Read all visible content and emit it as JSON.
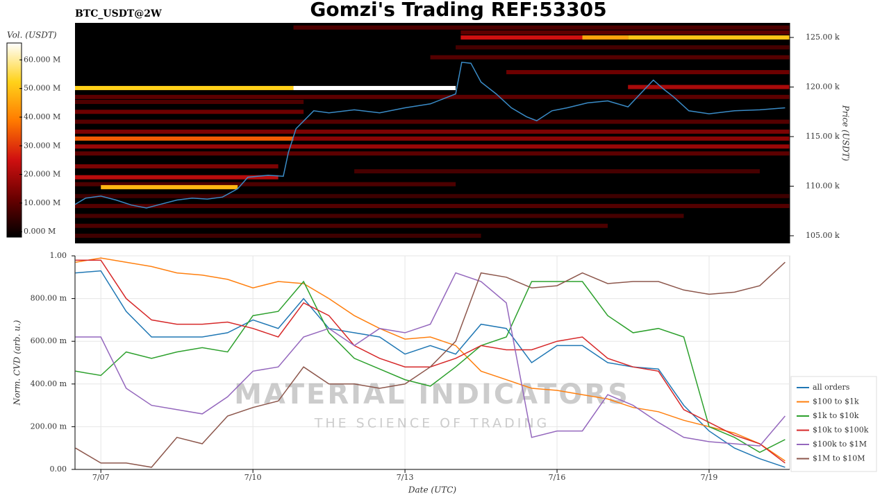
{
  "title": "Gomzi's Trading REF:53305",
  "chart_data": [
    {
      "type": "heatmap",
      "title": "BTC_USDT@2W",
      "ylabel": "Price (USDT)",
      "colorbar_label": "Vol. (USDT)",
      "xlim": [
        6.49,
        20.59
      ],
      "ylim": [
        104230,
        126470
      ],
      "yticks": [
        {
          "value": 105000,
          "label": "105.00 k"
        },
        {
          "value": 110000,
          "label": "110.00 k"
        },
        {
          "value": 115000,
          "label": "115.00 k"
        },
        {
          "value": 120000,
          "label": "120.00 k"
        },
        {
          "value": 125000,
          "label": "125.00 k"
        }
      ],
      "clim": [
        -1900000,
        65900000
      ],
      "cticks": [
        {
          "value": 0,
          "label": "0.000 M"
        },
        {
          "value": 10000000,
          "label": "10.000 M"
        },
        {
          "value": 20000000,
          "label": "20.000 M"
        },
        {
          "value": 30000000,
          "label": "30.000 M"
        },
        {
          "value": 40000000,
          "label": "40.000 M"
        },
        {
          "value": 50000000,
          "label": "50.000 M"
        },
        {
          "value": 60000000,
          "label": "60.000 M"
        }
      ],
      "colormap": [
        "#000000",
        "#6a0000",
        "#d01010",
        "#ff7a00",
        "#ffd21a",
        "#ffffff"
      ],
      "bands": [
        {
          "price": 126000,
          "start": 10.8,
          "end": 20.59,
          "volume": 8000000
        },
        {
          "price": 125500,
          "start": 14.1,
          "end": 20.59,
          "volume": 10000000
        },
        {
          "price": 125000,
          "start": 14.1,
          "end": 16.5,
          "volume": 25000000
        },
        {
          "price": 125000,
          "start": 16.5,
          "end": 17.4,
          "volume": 45000000
        },
        {
          "price": 125000,
          "start": 17.4,
          "end": 20.59,
          "volume": 50000000
        },
        {
          "price": 124000,
          "start": 14.0,
          "end": 20.59,
          "volume": 7000000
        },
        {
          "price": 123000,
          "start": 13.5,
          "end": 20.59,
          "volume": 9000000
        },
        {
          "price": 121500,
          "start": 15.0,
          "end": 20.59,
          "volume": 12000000
        },
        {
          "price": 120000,
          "start": 17.4,
          "end": 20.59,
          "volume": 20000000
        },
        {
          "price": 119900,
          "start": 6.49,
          "end": 10.8,
          "volume": 52000000
        },
        {
          "price": 119900,
          "start": 10.8,
          "end": 14.0,
          "volume": 66000000
        },
        {
          "price": 119000,
          "start": 6.49,
          "end": 20.59,
          "volume": 10000000
        },
        {
          "price": 118500,
          "start": 6.49,
          "end": 11.0,
          "volume": 8000000
        },
        {
          "price": 117500,
          "start": 6.49,
          "end": 11.0,
          "volume": 12000000
        },
        {
          "price": 116500,
          "start": 6.49,
          "end": 20.59,
          "volume": 9000000
        },
        {
          "price": 115500,
          "start": 6.49,
          "end": 20.59,
          "volume": 14000000
        },
        {
          "price": 114800,
          "start": 6.49,
          "end": 10.8,
          "volume": 35000000
        },
        {
          "price": 114800,
          "start": 10.8,
          "end": 20.59,
          "volume": 16000000
        },
        {
          "price": 114000,
          "start": 6.49,
          "end": 20.59,
          "volume": 18000000
        },
        {
          "price": 113300,
          "start": 6.49,
          "end": 20.59,
          "volume": 10000000
        },
        {
          "price": 112000,
          "start": 6.49,
          "end": 10.5,
          "volume": 14000000
        },
        {
          "price": 111500,
          "start": 12.0,
          "end": 20.0,
          "volume": 7000000
        },
        {
          "price": 110900,
          "start": 6.49,
          "end": 10.5,
          "volume": 22000000
        },
        {
          "price": 110200,
          "start": 6.49,
          "end": 14.0,
          "volume": 8000000
        },
        {
          "price": 109900,
          "start": 7.0,
          "end": 9.7,
          "volume": 48000000
        },
        {
          "price": 109000,
          "start": 6.49,
          "end": 20.59,
          "volume": 6000000
        },
        {
          "price": 108000,
          "start": 6.49,
          "end": 20.59,
          "volume": 9000000
        },
        {
          "price": 107000,
          "start": 6.49,
          "end": 18.5,
          "volume": 7000000
        },
        {
          "price": 106000,
          "start": 6.49,
          "end": 17.0,
          "volume": 8000000
        },
        {
          "price": 105000,
          "start": 6.49,
          "end": 14.5,
          "volume": 6000000
        }
      ],
      "price_color": "#3a8cc8",
      "price_x": [
        6.49,
        6.7,
        7.0,
        7.3,
        7.6,
        7.9,
        8.2,
        8.5,
        8.8,
        9.1,
        9.4,
        9.7,
        9.9,
        10.3,
        10.6,
        10.7,
        10.85,
        11.2,
        11.5,
        12.0,
        12.5,
        13.0,
        13.5,
        14.0,
        14.12,
        14.3,
        14.5,
        14.8,
        15.1,
        15.4,
        15.6,
        15.9,
        16.2,
        16.6,
        17.0,
        17.4,
        17.9,
        18.1,
        18.3,
        18.6,
        19.0,
        19.5,
        20.0,
        20.5
      ],
      "price": [
        108150,
        108800,
        109000,
        108600,
        108100,
        107800,
        108200,
        108600,
        108800,
        108700,
        108900,
        109750,
        110900,
        111100,
        111000,
        113400,
        115800,
        117600,
        117400,
        117700,
        117400,
        117900,
        118300,
        119300,
        122500,
        122400,
        120500,
        119300,
        117900,
        117000,
        116600,
        117600,
        117900,
        118400,
        118600,
        118000,
        120700,
        119800,
        119000,
        117600,
        117300,
        117600,
        117700,
        117900
      ]
    },
    {
      "type": "line",
      "xlabel": "Date (UTC)",
      "ylabel": "Norm. CVD (arb. u.)",
      "grid": true,
      "legend": "lower right",
      "watermark": [
        "MATERIAL INDICATORS",
        "THE SCIENCE OF TRADING"
      ],
      "xlim": [
        6.49,
        20.59
      ],
      "ylim": [
        0,
        1
      ],
      "xticks": [
        {
          "value": 7,
          "label": "7/07"
        },
        {
          "value": 10,
          "label": "7/10"
        },
        {
          "value": 13,
          "label": "7/13"
        },
        {
          "value": 16,
          "label": "7/16"
        },
        {
          "value": 19,
          "label": "7/19"
        }
      ],
      "yticks": [
        {
          "value": 0,
          "label": "0.00"
        },
        {
          "value": 0.2,
          "label": "200.00 m"
        },
        {
          "value": 0.4,
          "label": "400.00 m"
        },
        {
          "value": 0.6,
          "label": "600.00 m"
        },
        {
          "value": 0.8,
          "label": "800.00 m"
        },
        {
          "value": 1,
          "label": "1.00"
        }
      ],
      "x": [
        6.5,
        7,
        7.5,
        8,
        8.5,
        9,
        9.5,
        10,
        10.5,
        11,
        11.5,
        12,
        12.5,
        13,
        13.5,
        14,
        14.5,
        15,
        15.5,
        16,
        16.5,
        17,
        17.5,
        18,
        18.5,
        19,
        19.5,
        20,
        20.5
      ],
      "series": [
        {
          "name": "all orders",
          "color": "#1f77b4",
          "values": [
            0.92,
            0.93,
            0.74,
            0.62,
            0.62,
            0.62,
            0.64,
            0.7,
            0.66,
            0.8,
            0.66,
            0.64,
            0.62,
            0.54,
            0.58,
            0.54,
            0.68,
            0.66,
            0.5,
            0.58,
            0.58,
            0.5,
            0.48,
            0.47,
            0.3,
            0.18,
            0.1,
            0.05,
            0.01
          ]
        },
        {
          "name": "$100 to $1k",
          "color": "#ff7f0e",
          "values": [
            0.97,
            0.99,
            0.97,
            0.95,
            0.92,
            0.91,
            0.89,
            0.85,
            0.88,
            0.87,
            0.8,
            0.72,
            0.66,
            0.61,
            0.62,
            0.58,
            0.46,
            0.42,
            0.38,
            0.37,
            0.35,
            0.33,
            0.29,
            0.27,
            0.23,
            0.2,
            0.17,
            0.12,
            0.04
          ]
        },
        {
          "name": "$1k to $10k",
          "color": "#2ca02c",
          "values": [
            0.46,
            0.44,
            0.55,
            0.52,
            0.55,
            0.57,
            0.55,
            0.72,
            0.74,
            0.88,
            0.64,
            0.52,
            0.47,
            0.42,
            0.39,
            0.48,
            0.58,
            0.62,
            0.88,
            0.88,
            0.88,
            0.72,
            0.64,
            0.66,
            0.62,
            0.2,
            0.15,
            0.08,
            0.14
          ]
        },
        {
          "name": "$10k to $100k",
          "color": "#d62728",
          "values": [
            0.98,
            0.98,
            0.8,
            0.7,
            0.68,
            0.68,
            0.69,
            0.66,
            0.62,
            0.78,
            0.72,
            0.58,
            0.52,
            0.48,
            0.48,
            0.52,
            0.58,
            0.56,
            0.56,
            0.6,
            0.62,
            0.52,
            0.48,
            0.46,
            0.28,
            0.22,
            0.16,
            0.12,
            0.03
          ]
        },
        {
          "name": "$100k to $1M",
          "color": "#9467bd",
          "values": [
            0.62,
            0.62,
            0.38,
            0.3,
            0.28,
            0.26,
            0.34,
            0.46,
            0.48,
            0.62,
            0.66,
            0.58,
            0.66,
            0.64,
            0.68,
            0.92,
            0.88,
            0.78,
            0.15,
            0.18,
            0.18,
            0.35,
            0.3,
            0.22,
            0.15,
            0.13,
            0.12,
            0.11,
            0.25
          ]
        },
        {
          "name": "$1M to $10M",
          "color": "#8c564b",
          "values": [
            0.1,
            0.03,
            0.03,
            0.01,
            0.15,
            0.12,
            0.25,
            0.29,
            0.32,
            0.48,
            0.4,
            0.4,
            0.38,
            0.4,
            0.48,
            0.6,
            0.92,
            0.9,
            0.85,
            0.86,
            0.92,
            0.87,
            0.88,
            0.88,
            0.84,
            0.82,
            0.83,
            0.86,
            0.97
          ]
        }
      ]
    }
  ]
}
